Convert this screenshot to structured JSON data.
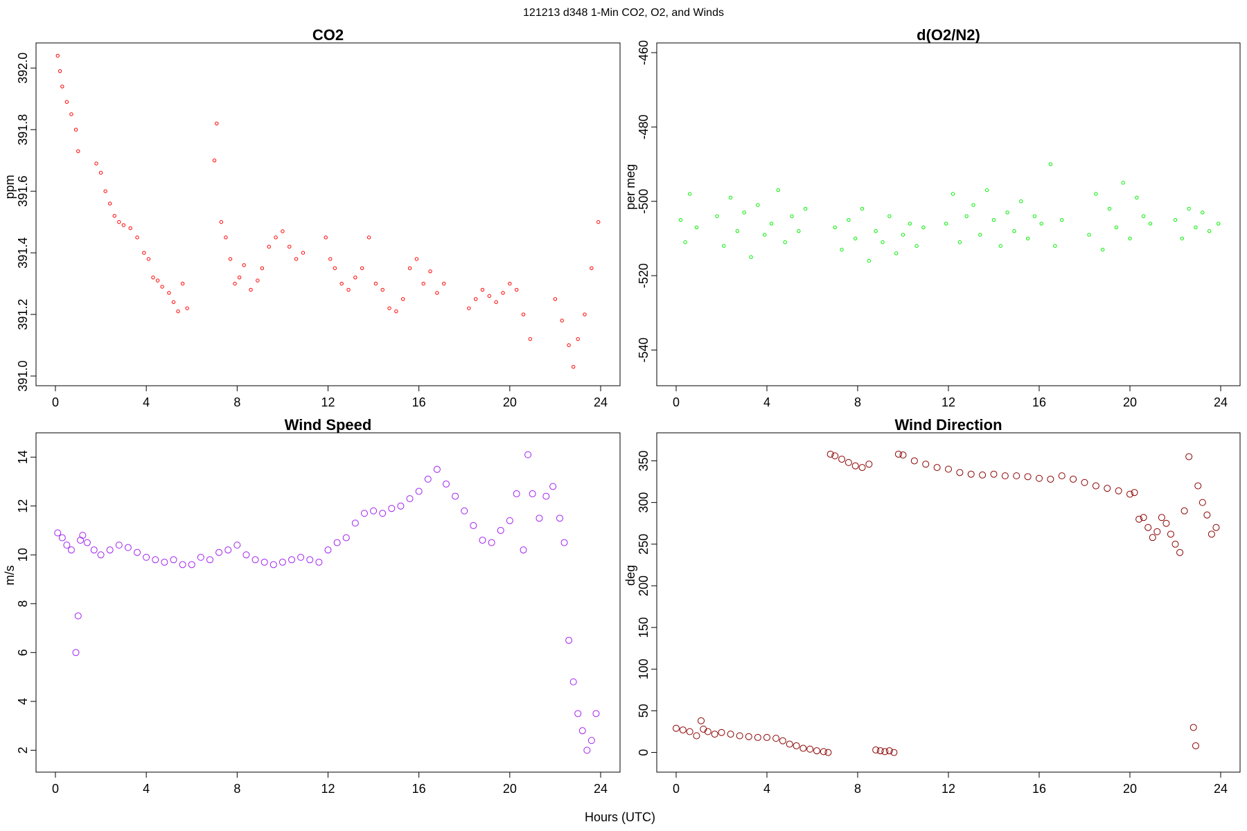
{
  "figure": {
    "title": "121213   d348   1-Min CO2, O2, and Winds",
    "xlabel": "Hours (UTC)"
  },
  "chart_data": [
    {
      "id": "co2",
      "type": "scatter",
      "title": "CO2",
      "xlabel": "",
      "ylabel": "ppm",
      "color": "#ff0000",
      "marker": "small-open-circle",
      "xlim": [
        0,
        24
      ],
      "ylim": [
        391.0,
        392.05
      ],
      "xticks": [
        0,
        4,
        8,
        12,
        16,
        20,
        24
      ],
      "yticks": [
        391.0,
        391.2,
        391.4,
        391.6,
        391.8,
        392.0
      ],
      "ytick_labels": [
        "391.0",
        "391.2",
        "391.4",
        "391.6",
        "391.8",
        "392.0"
      ],
      "series": [
        {
          "x": [
            0.1,
            0.2,
            0.3,
            0.5,
            0.7,
            0.9,
            1.0,
            1.8,
            2.0,
            2.2,
            2.4,
            2.6,
            2.8,
            3.0,
            3.3,
            3.6,
            3.9,
            4.1,
            4.3,
            4.5,
            4.7,
            5.0,
            5.2,
            5.4,
            5.6,
            5.8,
            7.0,
            7.1,
            7.3,
            7.5,
            7.7,
            7.9,
            8.1,
            8.3,
            8.6,
            8.9,
            9.1,
            9.4,
            9.7,
            10.0,
            10.3,
            10.6,
            10.9,
            11.9,
            12.1,
            12.3,
            12.6,
            12.9,
            13.2,
            13.5,
            13.8,
            14.1,
            14.4,
            14.7,
            15.0,
            15.3,
            15.6,
            15.9,
            16.2,
            16.5,
            16.8,
            17.1,
            18.2,
            18.5,
            18.8,
            19.1,
            19.4,
            19.7,
            20.0,
            20.3,
            20.6,
            20.9,
            22.0,
            22.3,
            22.6,
            22.8,
            23.0,
            23.3,
            23.6,
            23.9
          ],
          "y": [
            392.04,
            391.99,
            391.94,
            391.89,
            391.85,
            391.8,
            391.73,
            391.69,
            391.66,
            391.6,
            391.56,
            391.52,
            391.5,
            391.49,
            391.48,
            391.45,
            391.4,
            391.38,
            391.32,
            391.31,
            391.29,
            391.27,
            391.24,
            391.21,
            391.3,
            391.22,
            391.7,
            391.82,
            391.5,
            391.45,
            391.38,
            391.3,
            391.32,
            391.36,
            391.28,
            391.31,
            391.35,
            391.42,
            391.45,
            391.47,
            391.42,
            391.38,
            391.4,
            391.45,
            391.38,
            391.35,
            391.3,
            391.28,
            391.32,
            391.35,
            391.45,
            391.3,
            391.28,
            391.22,
            391.21,
            391.25,
            391.35,
            391.38,
            391.3,
            391.34,
            391.27,
            391.3,
            391.22,
            391.25,
            391.28,
            391.26,
            391.24,
            391.27,
            391.3,
            391.28,
            391.2,
            391.12,
            391.25,
            391.18,
            391.1,
            391.03,
            391.12,
            391.2,
            391.35,
            391.5
          ]
        }
      ]
    },
    {
      "id": "o2",
      "type": "scatter",
      "title": "d(O2/N2)",
      "xlabel": "",
      "ylabel": "per meg",
      "color": "#00ee00",
      "marker": "small-open-circle",
      "xlim": [
        0,
        24
      ],
      "ylim": [
        -547,
        -460
      ],
      "xticks": [
        0,
        4,
        8,
        12,
        16,
        20,
        24
      ],
      "yticks": [
        -540,
        -520,
        -500,
        -480,
        -460
      ],
      "ytick_labels": [
        "-540",
        "-520",
        "-500",
        "-480",
        "-460"
      ],
      "series": [
        {
          "x": [
            0.2,
            0.4,
            0.6,
            0.9,
            1.8,
            2.1,
            2.4,
            2.7,
            3.0,
            3.3,
            3.6,
            3.9,
            4.2,
            4.5,
            4.8,
            5.1,
            5.4,
            5.7,
            7.0,
            7.3,
            7.6,
            7.9,
            8.2,
            8.5,
            8.8,
            9.1,
            9.4,
            9.7,
            10.0,
            10.3,
            10.6,
            10.9,
            11.9,
            12.2,
            12.5,
            12.8,
            13.1,
            13.4,
            13.7,
            14.0,
            14.3,
            14.6,
            14.9,
            15.2,
            15.5,
            15.8,
            16.1,
            16.5,
            16.7,
            17.0,
            18.2,
            18.5,
            18.8,
            19.1,
            19.4,
            19.7,
            20.0,
            20.3,
            20.6,
            20.9,
            22.0,
            22.3,
            22.6,
            22.9,
            23.2,
            23.5,
            23.9
          ],
          "y": [
            -505,
            -511,
            -498,
            -507,
            -504,
            -512,
            -499,
            -508,
            -503,
            -515,
            -501,
            -509,
            -506,
            -497,
            -511,
            -504,
            -508,
            -502,
            -507,
            -513,
            -505,
            -510,
            -502,
            -516,
            -508,
            -511,
            -504,
            -514,
            -509,
            -506,
            -512,
            -507,
            -506,
            -498,
            -511,
            -504,
            -501,
            -509,
            -497,
            -505,
            -512,
            -503,
            -508,
            -500,
            -510,
            -504,
            -506,
            -490,
            -512,
            -505,
            -509,
            -498,
            -513,
            -502,
            -507,
            -495,
            -510,
            -499,
            -504,
            -506,
            -505,
            -510,
            -502,
            -507,
            -503,
            -508,
            -506
          ]
        }
      ]
    },
    {
      "id": "wind-speed",
      "type": "scatter",
      "title": "Wind Speed",
      "xlabel": "",
      "ylabel": "m/s",
      "color": "#a020f0",
      "marker": "open-circle",
      "xlim": [
        0,
        24
      ],
      "ylim": [
        1.5,
        14.6
      ],
      "xticks": [
        0,
        4,
        8,
        12,
        16,
        20,
        24
      ],
      "yticks": [
        2,
        4,
        6,
        8,
        10,
        12,
        14
      ],
      "ytick_labels": [
        "2",
        "4",
        "6",
        "8",
        "10",
        "12",
        "14"
      ],
      "series": [
        {
          "x": [
            0.1,
            0.3,
            0.5,
            0.7,
            0.9,
            1.0,
            1.1,
            1.2,
            1.4,
            1.7,
            2.0,
            2.4,
            2.8,
            3.2,
            3.6,
            4.0,
            4.4,
            4.8,
            5.2,
            5.6,
            6.0,
            6.4,
            6.8,
            7.2,
            7.6,
            8.0,
            8.4,
            8.8,
            9.2,
            9.6,
            10.0,
            10.4,
            10.8,
            11.2,
            11.6,
            12.0,
            12.4,
            12.8,
            13.2,
            13.6,
            14.0,
            14.4,
            14.8,
            15.2,
            15.6,
            16.0,
            16.4,
            16.8,
            17.2,
            17.6,
            18.0,
            18.4,
            18.8,
            19.2,
            19.6,
            20.0,
            20.3,
            20.6,
            20.8,
            21.0,
            21.3,
            21.6,
            21.9,
            22.2,
            22.4,
            22.6,
            22.8,
            23.0,
            23.2,
            23.4,
            23.6,
            23.8
          ],
          "y": [
            10.9,
            10.7,
            10.4,
            10.2,
            6.0,
            7.5,
            10.6,
            10.8,
            10.5,
            10.2,
            10.0,
            10.2,
            10.4,
            10.3,
            10.1,
            9.9,
            9.8,
            9.7,
            9.8,
            9.6,
            9.6,
            9.9,
            9.8,
            10.1,
            10.2,
            10.4,
            10.0,
            9.8,
            9.7,
            9.6,
            9.7,
            9.8,
            9.9,
            9.8,
            9.7,
            10.2,
            10.5,
            10.7,
            11.3,
            11.7,
            11.8,
            11.7,
            11.9,
            12.0,
            12.3,
            12.6,
            13.1,
            13.5,
            12.9,
            12.4,
            11.8,
            11.2,
            10.6,
            10.5,
            11.0,
            11.4,
            12.5,
            10.2,
            14.1,
            12.5,
            11.5,
            12.4,
            12.8,
            11.5,
            10.5,
            6.5,
            4.8,
            3.5,
            2.8,
            2.0,
            2.4,
            3.5
          ]
        }
      ]
    },
    {
      "id": "wind-direction",
      "type": "scatter",
      "title": "Wind Direction",
      "xlabel": "",
      "ylabel": "deg",
      "color": "#8b0000",
      "marker": "open-circle",
      "xlim": [
        0,
        24
      ],
      "ylim": [
        -12,
        372
      ],
      "xticks": [
        0,
        4,
        8,
        12,
        16,
        20,
        24
      ],
      "yticks": [
        0,
        50,
        100,
        150,
        200,
        250,
        300,
        350
      ],
      "ytick_labels": [
        "0",
        "50",
        "100",
        "150",
        "200",
        "250",
        "300",
        "350"
      ],
      "series": [
        {
          "x": [
            0.0,
            0.3,
            0.6,
            0.9,
            1.1,
            1.2,
            1.4,
            1.7,
            2.0,
            2.4,
            2.8,
            3.2,
            3.6,
            4.0,
            4.4,
            4.7,
            5.0,
            5.3,
            5.6,
            5.9,
            6.2,
            6.5,
            6.7,
            6.8,
            7.0,
            7.3,
            7.6,
            7.9,
            8.2,
            8.5,
            8.8,
            9.0,
            9.2,
            9.4,
            9.6,
            9.8,
            10.0,
            10.5,
            11.0,
            11.5,
            12.0,
            12.5,
            13.0,
            13.5,
            14.0,
            14.5,
            15.0,
            15.5,
            16.0,
            16.5,
            17.0,
            17.5,
            18.0,
            18.5,
            19.0,
            19.5,
            20.0,
            20.2,
            20.4,
            20.6,
            20.8,
            21.0,
            21.2,
            21.4,
            21.6,
            21.8,
            22.0,
            22.2,
            22.4,
            22.6,
            22.8,
            22.9,
            23.0,
            23.2,
            23.4,
            23.6,
            23.8
          ],
          "y": [
            29,
            27,
            25,
            20,
            38,
            28,
            25,
            22,
            24,
            22,
            20,
            19,
            18,
            18,
            17,
            14,
            10,
            8,
            5,
            4,
            2,
            1,
            0,
            358,
            356,
            352,
            348,
            344,
            342,
            346,
            3,
            2,
            1,
            2,
            0,
            358,
            357,
            350,
            346,
            342,
            340,
            336,
            334,
            333,
            334,
            332,
            332,
            331,
            329,
            328,
            332,
            328,
            324,
            320,
            317,
            314,
            310,
            312,
            280,
            282,
            270,
            258,
            265,
            282,
            275,
            262,
            250,
            240,
            290,
            355,
            30,
            8,
            320,
            300,
            285,
            262,
            270
          ]
        }
      ]
    }
  ]
}
